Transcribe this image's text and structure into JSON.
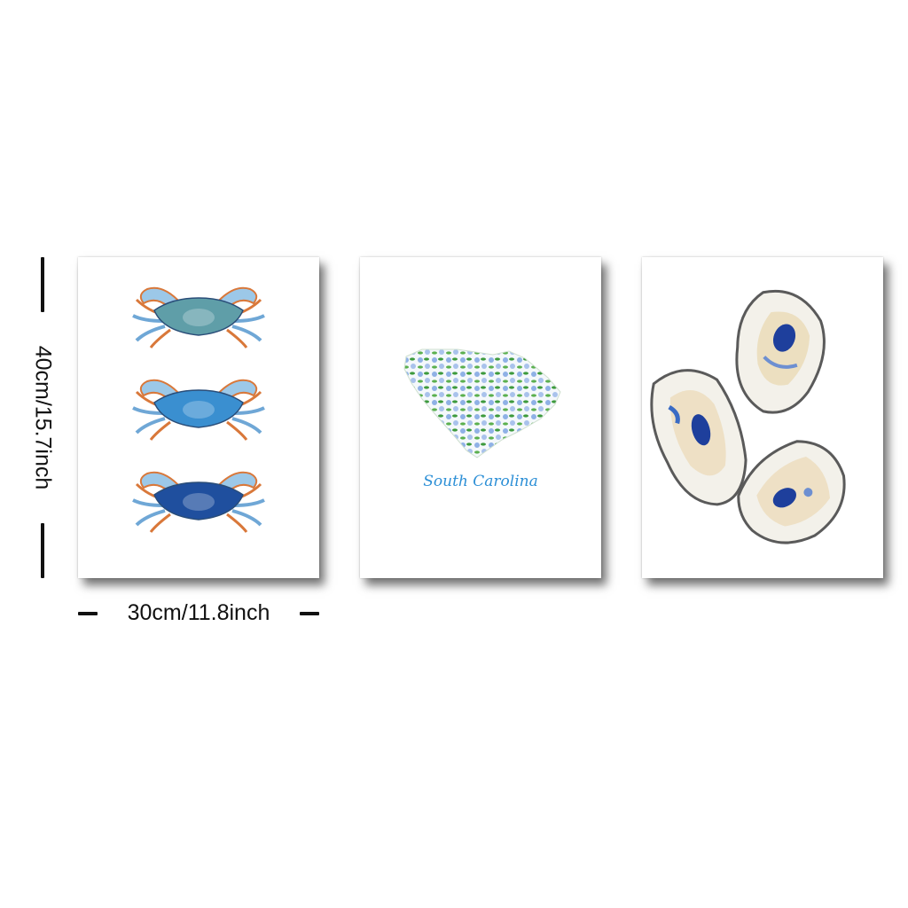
{
  "dimensions": {
    "width_label": "30cm/11.8inch",
    "height_label": "40cm/15.7inch"
  },
  "panels": [
    {
      "subject": "blue crabs",
      "crab_colors": [
        "#5f9ea8",
        "#3a8fd0",
        "#1f4f9e"
      ],
      "accent": "#d9783a"
    },
    {
      "subject": "state map",
      "caption": "South Carolina",
      "caption_color": "#2c8fd6",
      "leaf_color": "#3d9a3d",
      "flower_color": "#8fb1e6"
    },
    {
      "subject": "oyster shells",
      "shell_edge": "#5a5a5a",
      "ink_color": "#1e3f9c",
      "tint_color": "#e5c98f"
    }
  ]
}
